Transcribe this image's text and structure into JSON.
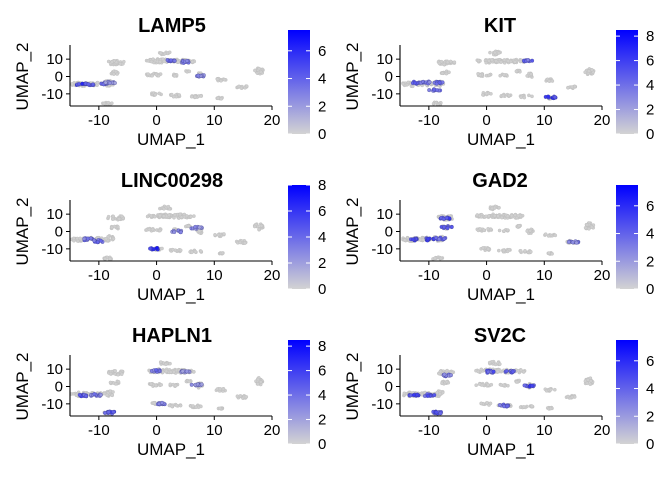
{
  "chart_data": [
    {
      "type": "scatter",
      "title": "LAMP5",
      "xlabel": "UMAP_1",
      "ylabel": "UMAP_2",
      "xlim": [
        -15,
        20
      ],
      "ylim": [
        -17,
        17
      ],
      "xticks": [
        "-10",
        "0",
        "10",
        "20"
      ],
      "yticks": [
        "10",
        "0",
        "-10"
      ],
      "colorbar": {
        "min": 0,
        "max": 7.5,
        "ticks": [
          "0",
          "2",
          "4",
          "6"
        ],
        "low_color": "#d3d3d3",
        "high_color": "#0000ff"
      },
      "hotspots": [
        {
          "x": -13.0,
          "y": -4.5,
          "value": 6.5
        },
        {
          "x": -11.5,
          "y": -4.5,
          "value": 5.0
        },
        {
          "x": -9.5,
          "y": -4.0,
          "value": 4.0
        },
        {
          "x": -8.0,
          "y": -3.5,
          "value": 2.5
        },
        {
          "x": 2.5,
          "y": 9.0,
          "value": 4.5
        },
        {
          "x": 5.0,
          "y": 8.5,
          "value": 3.5
        },
        {
          "x": 7.5,
          "y": 0.5,
          "value": 3.0
        }
      ]
    },
    {
      "type": "scatter",
      "title": "KIT",
      "xlabel": "UMAP_1",
      "ylabel": "UMAP_2",
      "xlim": [
        -15,
        20
      ],
      "ylim": [
        -17,
        17
      ],
      "xticks": [
        "-10",
        "0",
        "10",
        "20"
      ],
      "yticks": [
        "10",
        "0",
        "-10"
      ],
      "colorbar": {
        "min": 0,
        "max": 8.5,
        "ticks": [
          "0",
          "2",
          "4",
          "6",
          "8"
        ],
        "low_color": "#d3d3d3",
        "high_color": "#0000ff"
      },
      "hotspots": [
        {
          "x": -12.0,
          "y": -3.5,
          "value": 5.0
        },
        {
          "x": -10.5,
          "y": -3.5,
          "value": 4.0
        },
        {
          "x": -8.5,
          "y": -3.5,
          "value": 5.5
        },
        {
          "x": -9.0,
          "y": -8.0,
          "value": 4.5
        },
        {
          "x": 7.0,
          "y": 9.0,
          "value": 5.0
        },
        {
          "x": 11.0,
          "y": -12.0,
          "value": 8.0
        }
      ]
    },
    {
      "type": "scatter",
      "title": "LINC00298",
      "xlabel": "UMAP_1",
      "ylabel": "UMAP_2",
      "xlim": [
        -15,
        20
      ],
      "ylim": [
        -17,
        17
      ],
      "xticks": [
        "-10",
        "0",
        "10",
        "20"
      ],
      "yticks": [
        "10",
        "0",
        "-10"
      ],
      "colorbar": {
        "min": 0,
        "max": 8,
        "ticks": [
          "0",
          "2",
          "4",
          "6",
          "8"
        ],
        "low_color": "#d3d3d3",
        "high_color": "#0000ff"
      },
      "hotspots": [
        {
          "x": -12.0,
          "y": -4.5,
          "value": 4.5
        },
        {
          "x": -10.0,
          "y": -5.5,
          "value": 5.0
        },
        {
          "x": -0.5,
          "y": -10.0,
          "value": 7.5
        },
        {
          "x": 3.5,
          "y": 0.0,
          "value": 3.5
        },
        {
          "x": 7.0,
          "y": 2.0,
          "value": 3.0
        }
      ]
    },
    {
      "type": "scatter",
      "title": "GAD2",
      "xlabel": "UMAP_1",
      "ylabel": "UMAP_2",
      "xlim": [
        -15,
        20
      ],
      "ylim": [
        -17,
        17
      ],
      "xticks": [
        "-10",
        "0",
        "10",
        "20"
      ],
      "yticks": [
        "10",
        "0",
        "-10"
      ],
      "colorbar": {
        "min": 0,
        "max": 7.5,
        "ticks": [
          "0",
          "2",
          "4",
          "6"
        ],
        "low_color": "#d3d3d3",
        "high_color": "#0000ff"
      },
      "hotspots": [
        {
          "x": -12.5,
          "y": -4.5,
          "value": 6.0
        },
        {
          "x": -10.0,
          "y": -4.5,
          "value": 6.5
        },
        {
          "x": -8.0,
          "y": -4.0,
          "value": 5.0
        },
        {
          "x": -7.0,
          "y": 7.5,
          "value": 6.0
        },
        {
          "x": -7.0,
          "y": 2.5,
          "value": 5.0
        },
        {
          "x": 15.0,
          "y": -6.0,
          "value": 3.5
        }
      ]
    },
    {
      "type": "scatter",
      "title": "HAPLN1",
      "xlabel": "UMAP_1",
      "ylabel": "UMAP_2",
      "xlim": [
        -15,
        20
      ],
      "ylim": [
        -17,
        17
      ],
      "xticks": [
        "-10",
        "0",
        "10",
        "20"
      ],
      "yticks": [
        "10",
        "0",
        "-10"
      ],
      "colorbar": {
        "min": 0,
        "max": 8.5,
        "ticks": [
          "0",
          "2",
          "4",
          "6",
          "8"
        ],
        "low_color": "#d3d3d3",
        "high_color": "#0000ff"
      },
      "hotspots": [
        {
          "x": -12.5,
          "y": -5.0,
          "value": 6.0
        },
        {
          "x": -10.5,
          "y": -5.0,
          "value": 4.0
        },
        {
          "x": -8.0,
          "y": -15.0,
          "value": 6.5
        },
        {
          "x": 0.0,
          "y": 9.0,
          "value": 4.5
        },
        {
          "x": 0.5,
          "y": -10.0,
          "value": 3.5
        },
        {
          "x": 5.0,
          "y": 8.5,
          "value": 3.0
        },
        {
          "x": 7.0,
          "y": 1.0,
          "value": 3.0
        }
      ]
    },
    {
      "type": "scatter",
      "title": "SV2C",
      "xlabel": "UMAP_1",
      "ylabel": "UMAP_2",
      "xlim": [
        -15,
        20
      ],
      "ylim": [
        -17,
        17
      ],
      "xticks": [
        "-10",
        "0",
        "10",
        "20"
      ],
      "yticks": [
        "10",
        "0",
        "-10"
      ],
      "colorbar": {
        "min": 0,
        "max": 7.5,
        "ticks": [
          "0",
          "2",
          "4",
          "6"
        ],
        "low_color": "#d3d3d3",
        "high_color": "#0000ff"
      },
      "hotspots": [
        {
          "x": -12.5,
          "y": -5.0,
          "value": 5.5
        },
        {
          "x": -10.0,
          "y": -5.0,
          "value": 5.0
        },
        {
          "x": -7.0,
          "y": 6.5,
          "value": 3.5
        },
        {
          "x": 0.5,
          "y": 8.5,
          "value": 5.0
        },
        {
          "x": 4.0,
          "y": 8.5,
          "value": 4.5
        },
        {
          "x": 7.5,
          "y": 0.5,
          "value": 6.0
        },
        {
          "x": -8.5,
          "y": -15.0,
          "value": 5.5
        },
        {
          "x": 3.0,
          "y": -11.0,
          "value": 4.0
        }
      ]
    }
  ]
}
